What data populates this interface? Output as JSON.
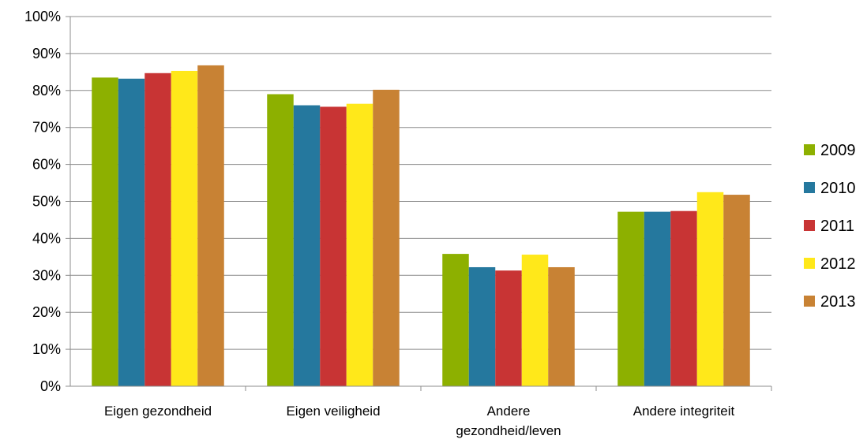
{
  "chart_data": {
    "type": "bar",
    "categories": [
      [
        "Eigen gezondheid"
      ],
      [
        "Eigen veiligheid"
      ],
      [
        "Andere",
        "gezondheid/leven"
      ],
      [
        "Andere integriteit"
      ]
    ],
    "y_ticks": [
      "0%",
      "10%",
      "20%",
      "30%",
      "40%",
      "50%",
      "60%",
      "70%",
      "80%",
      "90%",
      "100%"
    ],
    "ylim": [
      0,
      100
    ],
    "grid": true,
    "legend_position": "right",
    "series": [
      {
        "name": "2009",
        "color": "#8DB000",
        "values": [
          83.5,
          79.0,
          35.8,
          47.2
        ]
      },
      {
        "name": "2010",
        "color": "#25789E",
        "values": [
          83.2,
          76.0,
          32.2,
          47.2
        ]
      },
      {
        "name": "2011",
        "color": "#C83434",
        "values": [
          84.7,
          75.6,
          31.3,
          47.4
        ]
      },
      {
        "name": "2012",
        "color": "#FFE81A",
        "values": [
          85.3,
          76.4,
          35.6,
          52.5
        ]
      },
      {
        "name": "2013",
        "color": "#C88234",
        "values": [
          86.8,
          80.2,
          32.2,
          51.8
        ]
      }
    ]
  }
}
